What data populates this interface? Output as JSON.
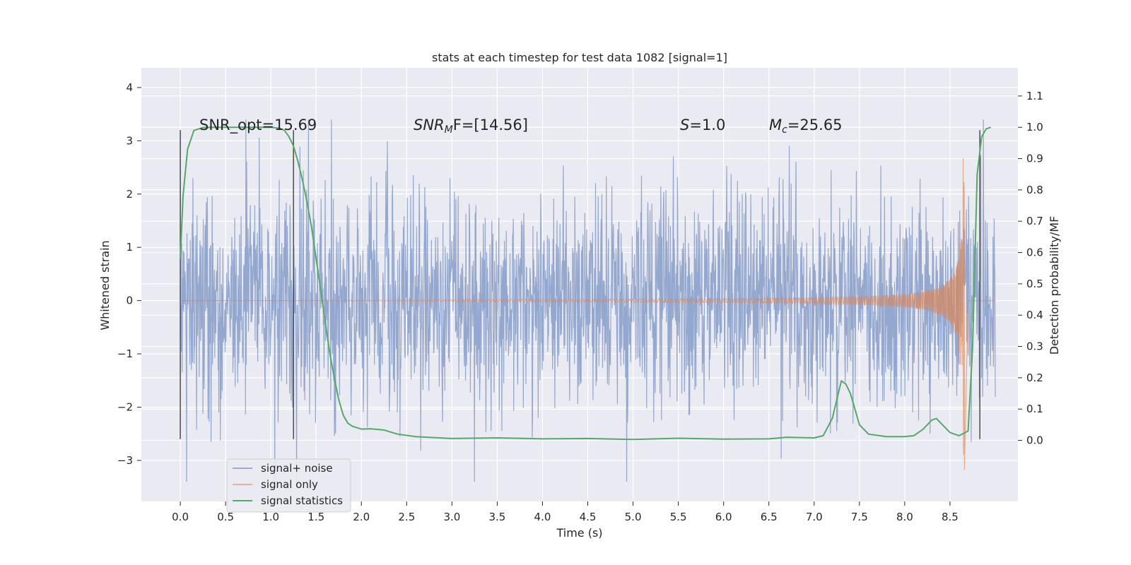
{
  "chart_data": {
    "type": "line",
    "title": "stats at each timestep for test data 1082 [signal=1]",
    "xlabel": "Time (s)",
    "ylabel": "Whitened strain",
    "y2label": "Detection probability/MF",
    "xlim": [
      -0.43,
      9.25
    ],
    "ylim": [
      -3.77,
      4.37
    ],
    "y2lim": [
      -0.195,
      1.19
    ],
    "xticks": [
      0.0,
      0.5,
      1.0,
      1.5,
      2.0,
      2.5,
      3.0,
      3.5,
      4.0,
      4.5,
      5.0,
      5.5,
      6.0,
      6.5,
      7.0,
      7.5,
      8.0,
      8.5
    ],
    "xtick_labels": [
      "0.0",
      "0.5",
      "1.0",
      "1.5",
      "2.0",
      "2.5",
      "3.0",
      "3.5",
      "4.0",
      "4.5",
      "5.0",
      "5.5",
      "6.0",
      "6.5",
      "7.0",
      "7.5",
      "8.0",
      "8.5"
    ],
    "yticks": [
      -3,
      -2,
      -1,
      0,
      1,
      2,
      3,
      4
    ],
    "ytick_labels": [
      "−3",
      "−2",
      "−1",
      "0",
      "1",
      "2",
      "3",
      "4"
    ],
    "y2ticks": [
      0.0,
      0.1,
      0.2,
      0.3,
      0.4,
      0.5,
      0.6,
      0.7,
      0.8,
      0.9,
      1.0,
      1.1
    ],
    "y2tick_labels": [
      "0.0",
      "0.1",
      "0.2",
      "0.3",
      "0.4",
      "0.5",
      "0.6",
      "0.7",
      "0.8",
      "0.9",
      "1.0",
      "1.1"
    ],
    "grid": true,
    "legend_position": "bottom-left",
    "series": [
      {
        "name": "signal+ noise",
        "color": "#8FA3CB",
        "description": "noise, approx. ±1.5 envelope with spikes to ~±3.5, t in [0, 9]"
      },
      {
        "name": "signal only",
        "color": "#DD8452",
        "description": "chirp growing in amplitude until merger near t≈8.65 s (peak ≈3.2)"
      },
      {
        "name": "signal statistics",
        "color": "#55A868",
        "axis": "right",
        "x": [
          0.0,
          0.03,
          0.08,
          0.15,
          0.25,
          0.4,
          0.6,
          0.8,
          1.0,
          1.1,
          1.15,
          1.2,
          1.25,
          1.3,
          1.35,
          1.4,
          1.45,
          1.5,
          1.55,
          1.6,
          1.65,
          1.7,
          1.75,
          1.8,
          1.85,
          1.9,
          2.0,
          2.1,
          2.25,
          2.4,
          2.6,
          3.0,
          3.5,
          4.0,
          4.5,
          5.0,
          5.5,
          6.0,
          6.5,
          6.7,
          7.0,
          7.1,
          7.2,
          7.3,
          7.35,
          7.4,
          7.5,
          7.6,
          7.8,
          8.0,
          8.1,
          8.2,
          8.3,
          8.35,
          8.4,
          8.5,
          8.6,
          8.7,
          8.75,
          8.8,
          8.85,
          8.9,
          8.95
        ],
        "y": [
          0.58,
          0.78,
          0.93,
          0.99,
          0.999,
          1.0,
          1.0,
          1.0,
          1.0,
          0.997,
          0.99,
          0.97,
          0.94,
          0.89,
          0.83,
          0.76,
          0.68,
          0.58,
          0.48,
          0.38,
          0.28,
          0.2,
          0.13,
          0.08,
          0.055,
          0.045,
          0.036,
          0.037,
          0.033,
          0.02,
          0.012,
          0.006,
          0.008,
          0.005,
          0.006,
          0.003,
          0.007,
          0.004,
          0.005,
          0.01,
          0.008,
          0.015,
          0.07,
          0.19,
          0.18,
          0.15,
          0.05,
          0.02,
          0.012,
          0.012,
          0.015,
          0.035,
          0.065,
          0.07,
          0.055,
          0.025,
          0.015,
          0.03,
          0.3,
          0.85,
          0.97,
          0.995,
          1.0
        ]
      }
    ],
    "vlines": [
      0.0,
      1.25,
      8.83
    ],
    "vline_range": [
      -2.6,
      3.2
    ],
    "annotations": [
      {
        "text": "SNR_opt=15.69",
        "x": 0.2,
        "y": 3.3
      },
      {
        "parts": [
          "SNR",
          "M",
          "F=[14.56]"
        ],
        "x": 2.6,
        "y": 3.3
      },
      {
        "parts": [
          "S",
          "=1.0"
        ],
        "x": 5.6,
        "y": 3.3
      },
      {
        "parts": [
          "M",
          "c",
          "=25.65"
        ],
        "x": 6.6,
        "y": 3.3
      }
    ]
  },
  "legend": {
    "noise_label": "signal+ noise",
    "signal_label": "signal only",
    "stat_label": "signal statistics"
  }
}
